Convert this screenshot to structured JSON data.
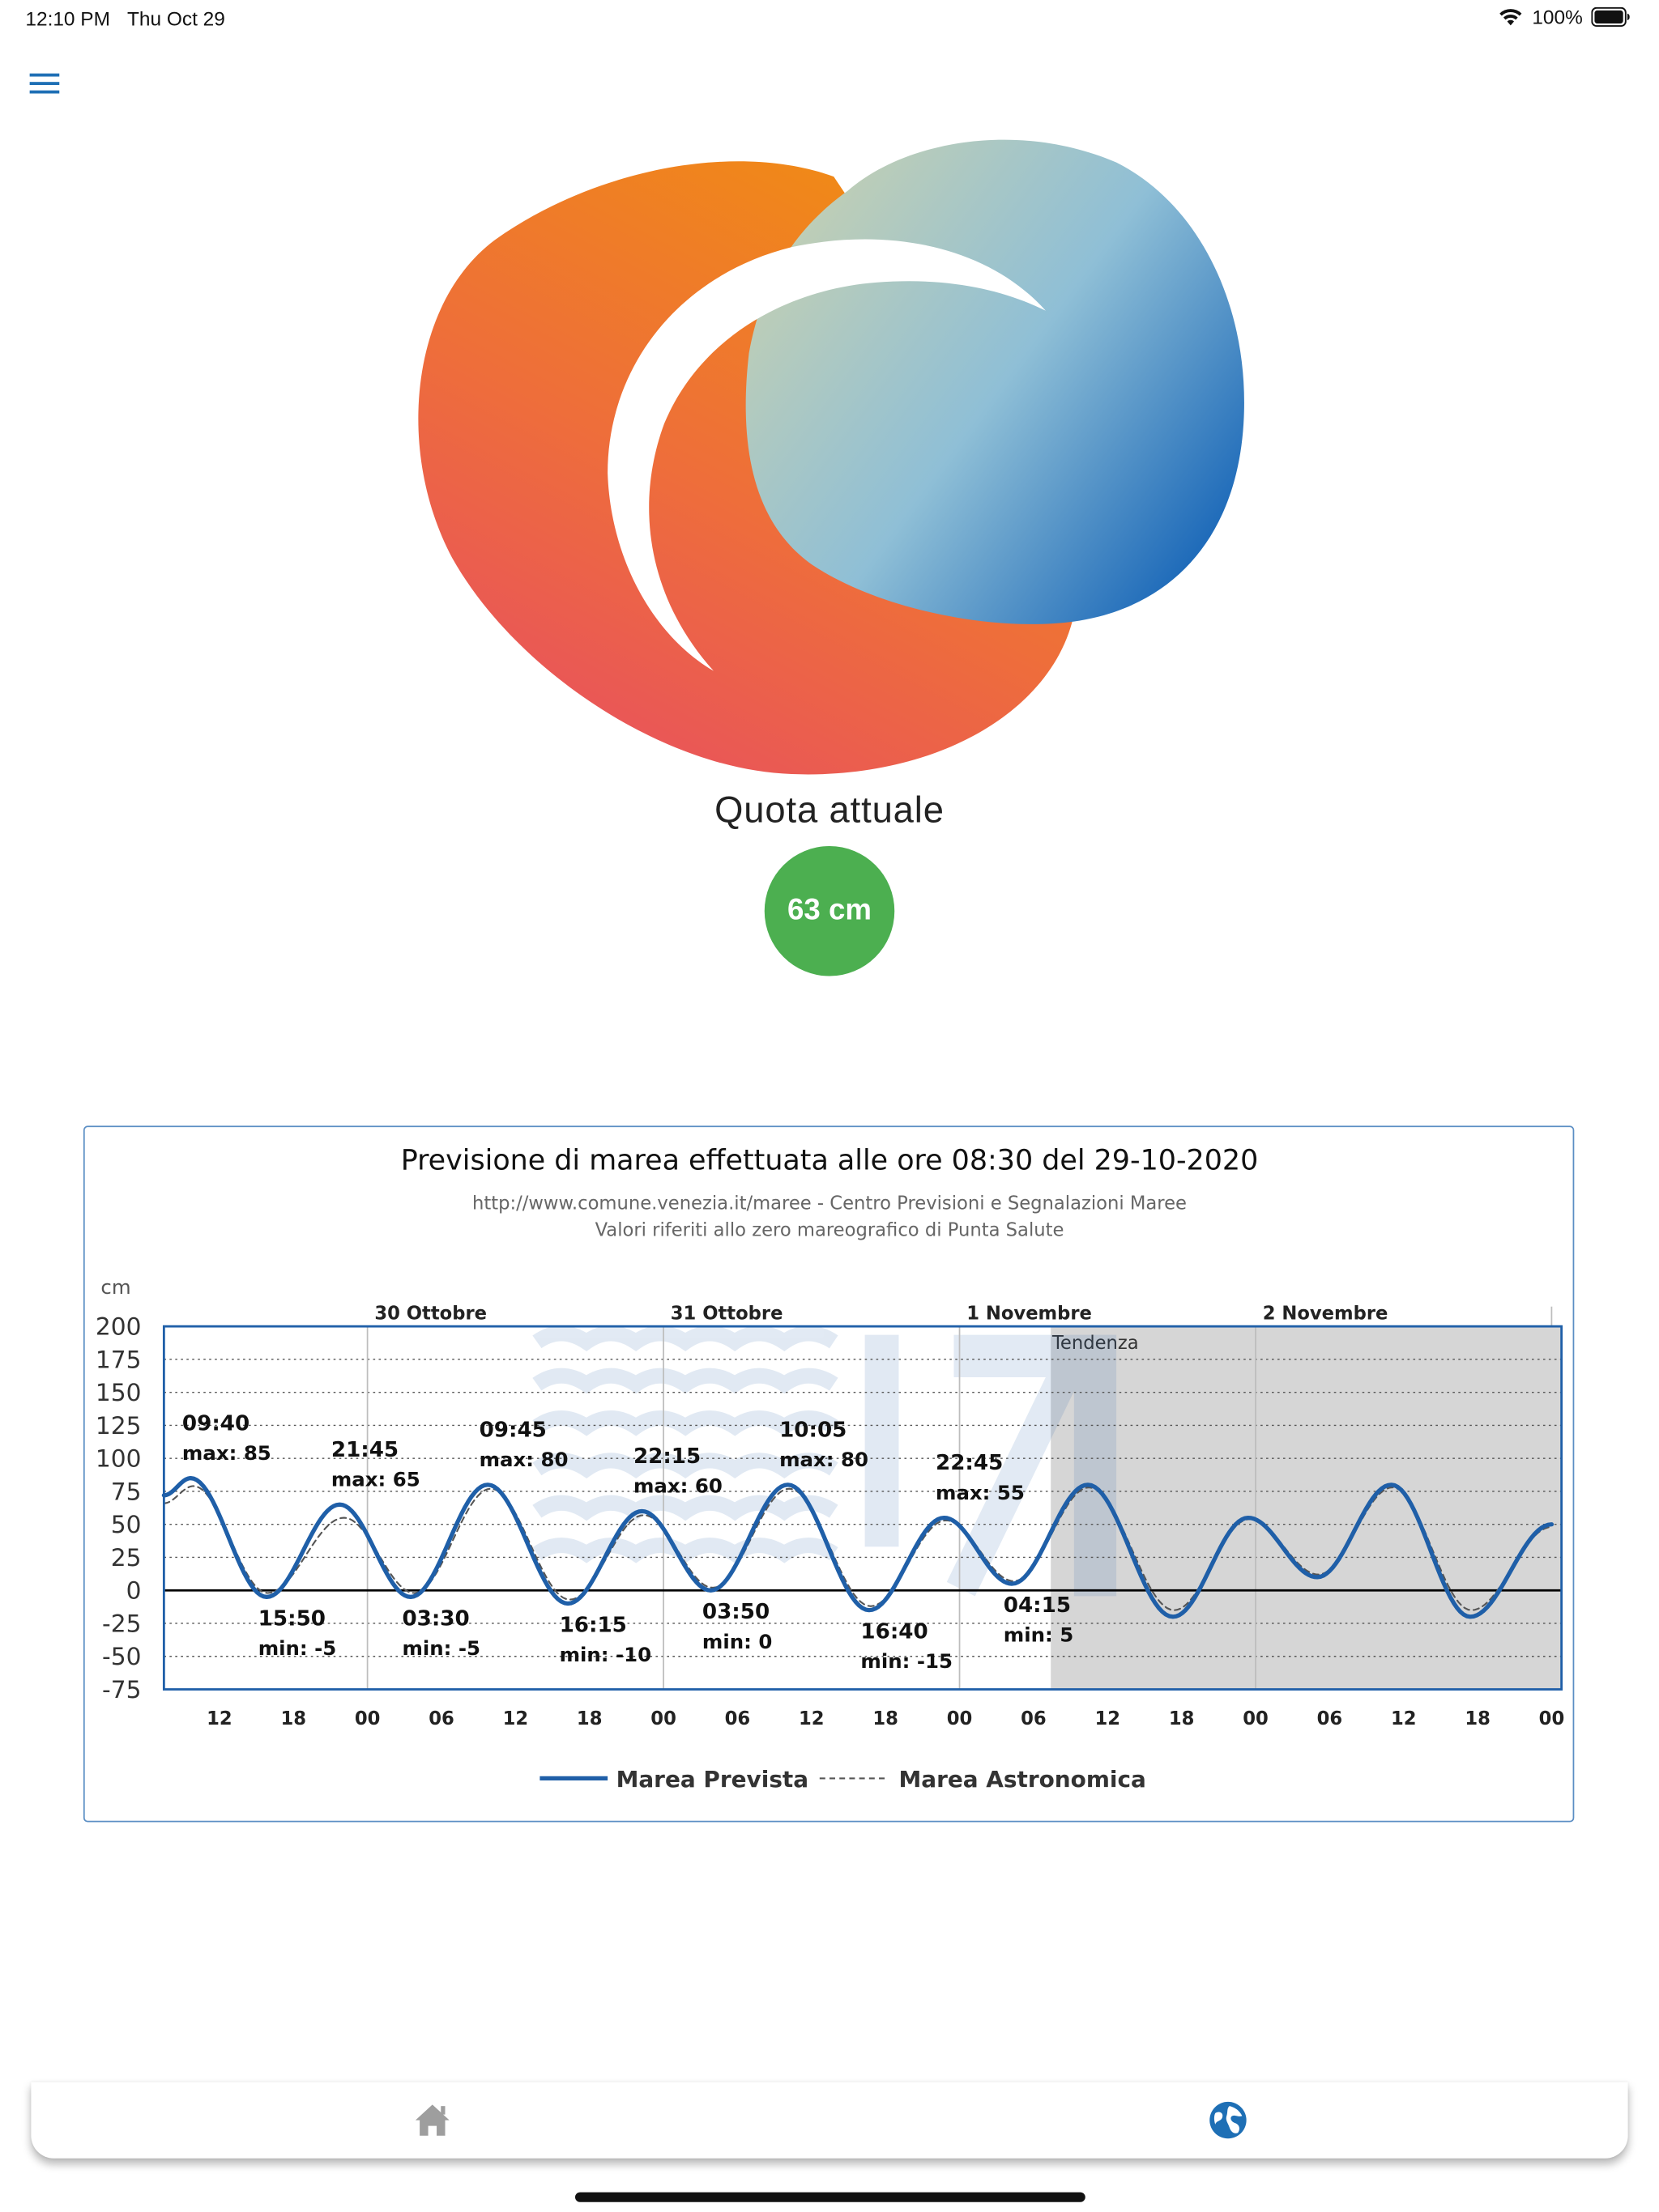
{
  "status_bar": {
    "time": "12:10 PM",
    "date": "Thu Oct 29",
    "battery": "100%"
  },
  "header": {
    "menu_icon": "hamburger-menu-icon"
  },
  "quota": {
    "title": "Quota attuale",
    "value": "63 cm",
    "badge_color": "#4caf50"
  },
  "tabbar": {
    "home_icon": "home-icon",
    "globe_icon": "globe-icon",
    "active_color": "#1e6fb5",
    "inactive_color": "#9e9e9e"
  },
  "chart_data": {
    "type": "line",
    "title": "Previsione di marea effettuata alle ore 08:30 del 29-10-2020",
    "subtitle_1": "http://www.comune.venezia.it/maree - Centro Previsioni e Segnalazioni Maree",
    "subtitle_2": "Valori riferiti allo zero mareografico di Punta Salute",
    "ylabel": "cm",
    "ylim": [
      -75,
      200
    ],
    "yticks": [
      200,
      175,
      150,
      125,
      100,
      75,
      50,
      25,
      0,
      -25,
      -50,
      -75
    ],
    "x_unit": "hours since 29-10-2020 00:00",
    "xlim": [
      7.5,
      120.8
    ],
    "xticks": [
      {
        "t": 12,
        "label": "12"
      },
      {
        "t": 18,
        "label": "18"
      },
      {
        "t": 24,
        "label": "00"
      },
      {
        "t": 30,
        "label": "06"
      },
      {
        "t": 36,
        "label": "12"
      },
      {
        "t": 42,
        "label": "18"
      },
      {
        "t": 48,
        "label": "00"
      },
      {
        "t": 54,
        "label": "06"
      },
      {
        "t": 60,
        "label": "12"
      },
      {
        "t": 66,
        "label": "18"
      },
      {
        "t": 72,
        "label": "00"
      },
      {
        "t": 78,
        "label": "06"
      },
      {
        "t": 84,
        "label": "12"
      },
      {
        "t": 90,
        "label": "18"
      },
      {
        "t": 96,
        "label": "00"
      },
      {
        "t": 102,
        "label": "06"
      },
      {
        "t": 108,
        "label": "12"
      },
      {
        "t": 114,
        "label": "18"
      },
      {
        "t": 120,
        "label": "00"
      }
    ],
    "days": [
      {
        "t": 24,
        "label": "30 Ottobre"
      },
      {
        "t": 48,
        "label": "31 Ottobre"
      },
      {
        "t": 72,
        "label": "1 Novembre"
      },
      {
        "t": 96,
        "label": "2 Novembre"
      }
    ],
    "tendenza": {
      "label": "Tendenza",
      "start_t": 79.4
    },
    "series": [
      {
        "name": "Marea Prevista",
        "color": "#1f5fa8",
        "style": "solid",
        "points": [
          [
            7.5,
            72
          ],
          [
            9.67,
            85
          ],
          [
            15.83,
            -5
          ],
          [
            21.75,
            65
          ],
          [
            27.5,
            -5
          ],
          [
            33.75,
            80
          ],
          [
            40.25,
            -10
          ],
          [
            46.25,
            60
          ],
          [
            51.83,
            0
          ],
          [
            58.08,
            80
          ],
          [
            64.67,
            -15
          ],
          [
            70.75,
            55
          ],
          [
            76.25,
            5
          ],
          [
            82.4,
            80
          ],
          [
            89.3,
            -20
          ],
          [
            95.4,
            55
          ],
          [
            101.0,
            10
          ],
          [
            107.0,
            80
          ],
          [
            113.4,
            -20
          ],
          [
            120.0,
            50
          ]
        ]
      },
      {
        "name": "Marea Astronomica",
        "color": "#555555",
        "style": "dashed",
        "points": [
          [
            7.5,
            66
          ],
          [
            9.9,
            79
          ],
          [
            15.9,
            -2
          ],
          [
            22.1,
            55
          ],
          [
            27.8,
            -2
          ],
          [
            34.0,
            77
          ],
          [
            40.4,
            -7
          ],
          [
            46.4,
            57
          ],
          [
            52.0,
            2
          ],
          [
            58.2,
            77
          ],
          [
            64.8,
            -12
          ],
          [
            70.9,
            53
          ],
          [
            76.4,
            7
          ],
          [
            82.5,
            78
          ],
          [
            89.4,
            -15
          ],
          [
            95.5,
            54
          ],
          [
            101.1,
            12
          ],
          [
            107.1,
            78
          ],
          [
            113.5,
            -15
          ],
          [
            120.0,
            48
          ]
        ]
      }
    ],
    "annotations": [
      {
        "t": 9.67,
        "v": 85,
        "kind": "max",
        "time": "09:40",
        "text": "max: 85"
      },
      {
        "t": 15.83,
        "v": -5,
        "kind": "min",
        "time": "15:50",
        "text": "min: -5"
      },
      {
        "t": 21.75,
        "v": 65,
        "kind": "max",
        "time": "21:45",
        "text": "max: 65"
      },
      {
        "t": 27.5,
        "v": -5,
        "kind": "min",
        "time": "03:30",
        "text": "min: -5"
      },
      {
        "t": 33.75,
        "v": 80,
        "kind": "max",
        "time": "09:45",
        "text": "max: 80"
      },
      {
        "t": 40.25,
        "v": -10,
        "kind": "min",
        "time": "16:15",
        "text": "min: -10"
      },
      {
        "t": 46.25,
        "v": 60,
        "kind": "max",
        "time": "22:15",
        "text": "max: 60"
      },
      {
        "t": 51.83,
        "v": 0,
        "kind": "min",
        "time": "03:50",
        "text": "min: 0"
      },
      {
        "t": 58.08,
        "v": 80,
        "kind": "max",
        "time": "10:05",
        "text": "max: 80"
      },
      {
        "t": 64.67,
        "v": -15,
        "kind": "min",
        "time": "16:40",
        "text": "min: -15"
      },
      {
        "t": 70.75,
        "v": 55,
        "kind": "max",
        "time": "22:45",
        "text": "max: 55"
      },
      {
        "t": 76.25,
        "v": 5,
        "kind": "min",
        "time": "04:15",
        "text": "min: 5"
      }
    ],
    "legend": [
      {
        "name": "Marea Prevista",
        "style": "solid",
        "color": "#1f5fa8"
      },
      {
        "name": "Marea Astronomica",
        "style": "dashed",
        "color": "#555555"
      }
    ],
    "legend_position": "bottom-center",
    "grid": true
  }
}
